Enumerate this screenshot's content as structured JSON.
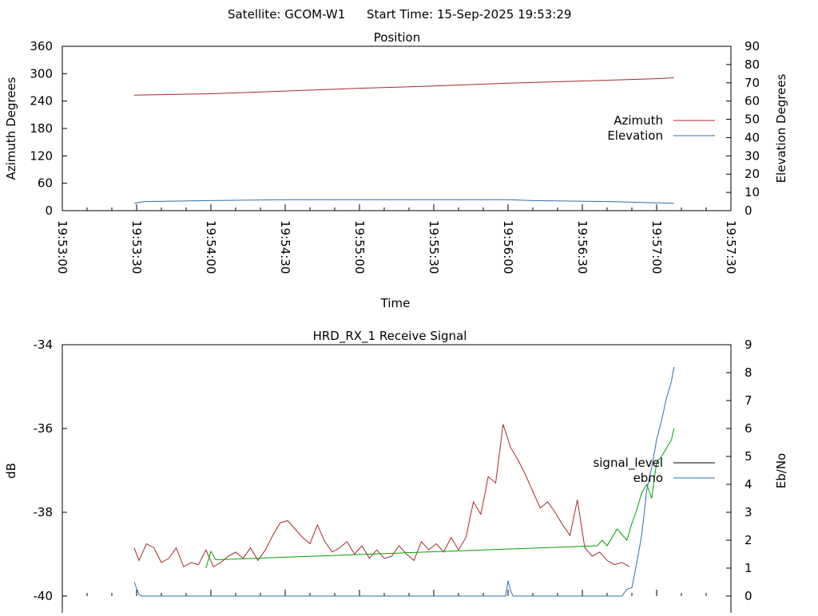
{
  "header": {
    "satellite": "Satellite: GCOM-W1",
    "start_time": "Start Time: 15-Sep-2025 19:53:29"
  },
  "colors": {
    "red": "#a52a2a",
    "blue": "#2f6fa7",
    "green": "#00a000",
    "black": "#000000"
  },
  "chart_data": [
    {
      "type": "line",
      "title": "Position",
      "xlabel": "Time",
      "ylabel": "Azimuth Degrees",
      "y2label": "Elevation Degrees",
      "xlim": [
        "19:53:00",
        "19:57:30"
      ],
      "ylim": [
        0,
        360
      ],
      "y2lim": [
        0,
        90
      ],
      "xticks": [
        "19:53:00",
        "19:53:30",
        "19:54:00",
        "19:54:30",
        "19:55:00",
        "19:55:30",
        "19:56:00",
        "19:56:30",
        "19:57:00",
        "19:57:30"
      ],
      "yticks": [
        0,
        60,
        120,
        180,
        240,
        300,
        360
      ],
      "y2ticks": [
        0,
        10,
        20,
        30,
        40,
        50,
        60,
        70,
        80,
        90
      ],
      "legend_position": "right",
      "series": [
        {
          "name": "Azimuth",
          "axis": "y",
          "color": "#a52a2a",
          "x": [
            "19:53:29",
            "19:54:00",
            "19:54:30",
            "19:55:00",
            "19:55:30",
            "19:56:00",
            "19:56:30",
            "19:57:00",
            "19:57:07"
          ],
          "values": [
            253,
            256,
            262,
            268,
            273,
            279,
            284,
            289,
            291
          ]
        },
        {
          "name": "Elevation",
          "axis": "y2",
          "color": "#2f6fa7",
          "x": [
            "19:53:29",
            "19:53:33",
            "19:54:00",
            "19:54:30",
            "19:55:00",
            "19:55:30",
            "19:56:00",
            "19:56:10",
            "19:56:40",
            "19:57:07"
          ],
          "values": [
            4,
            5,
            5.5,
            6,
            6,
            6,
            6,
            5.5,
            5,
            4
          ]
        }
      ]
    },
    {
      "type": "line",
      "title": "HRD_RX_1 Receive Signal",
      "xlabel": "",
      "ylabel": "dB",
      "y2label": "Eb/No",
      "xlim": [
        "19:53:00",
        "19:57:30"
      ],
      "ylim": [
        -40,
        -34
      ],
      "y2lim": [
        0,
        9
      ],
      "yticks": [
        -40,
        -38,
        -36,
        -34
      ],
      "y2ticks": [
        0,
        1,
        2,
        3,
        4,
        5,
        6,
        7,
        8,
        9
      ],
      "legend_position": "right",
      "series": [
        {
          "name": "signal_level",
          "axis": "y",
          "color": "#a52a2a",
          "x": [
            "19:53:29",
            "19:53:31",
            "19:53:34",
            "19:53:37",
            "19:53:40",
            "19:53:43",
            "19:53:46",
            "19:53:49",
            "19:53:52",
            "19:53:55",
            "19:53:58",
            "19:54:01",
            "19:54:04",
            "19:54:07",
            "19:54:10",
            "19:54:13",
            "19:54:16",
            "19:54:19",
            "19:54:22",
            "19:54:25",
            "19:54:28",
            "19:54:31",
            "19:54:34",
            "19:54:37",
            "19:54:40",
            "19:54:43",
            "19:54:46",
            "19:54:49",
            "19:54:52",
            "19:54:55",
            "19:54:58",
            "19:55:01",
            "19:55:04",
            "19:55:07",
            "19:55:10",
            "19:55:13",
            "19:55:16",
            "19:55:19",
            "19:55:22",
            "19:55:25",
            "19:55:28",
            "19:55:31",
            "19:55:34",
            "19:55:37",
            "19:55:40",
            "19:55:43",
            "19:55:46",
            "19:55:49",
            "19:55:52",
            "19:55:55",
            "19:55:58",
            "19:56:01",
            "19:56:04",
            "19:56:07",
            "19:56:10",
            "19:56:13",
            "19:56:16",
            "19:56:19",
            "19:56:22",
            "19:56:25",
            "19:56:28",
            "19:56:31",
            "19:56:34",
            "19:56:37",
            "19:56:40",
            "19:56:43",
            "19:56:46",
            "19:56:49"
          ],
          "values": [
            -38.85,
            -39.15,
            -38.75,
            -38.85,
            -39.2,
            -39.1,
            -38.85,
            -39.3,
            -39.2,
            -39.25,
            -38.9,
            -39.3,
            -39.2,
            -39.05,
            -38.95,
            -39.1,
            -38.85,
            -39.15,
            -38.9,
            -38.55,
            -38.25,
            -38.2,
            -38.4,
            -38.6,
            -38.75,
            -38.3,
            -38.7,
            -38.95,
            -38.85,
            -38.7,
            -39.0,
            -38.8,
            -39.1,
            -38.9,
            -39.1,
            -39.05,
            -38.8,
            -39.0,
            -39.15,
            -38.7,
            -38.9,
            -38.75,
            -38.95,
            -38.6,
            -38.9,
            -38.6,
            -37.75,
            -38.05,
            -37.15,
            -37.3,
            -35.9,
            -36.45,
            -36.75,
            -37.1,
            -37.5,
            -37.9,
            -37.75,
            -38.0,
            -38.3,
            -38.55,
            -37.7,
            -38.85,
            -39.05,
            -38.95,
            -39.15,
            -39.25,
            -39.2,
            -39.3
          ]
        },
        {
          "name": "ebno",
          "axis": "y2",
          "color": "#2f6fa7",
          "x": [
            "19:53:29",
            "19:53:31",
            "19:53:32",
            "19:53:33",
            "19:55:59",
            "19:56:00",
            "19:56:01",
            "19:56:02",
            "19:56:46",
            "19:56:48",
            "19:56:50",
            "19:56:52",
            "19:56:54",
            "19:56:56",
            "19:56:58",
            "19:57:00",
            "19:57:02",
            "19:57:04",
            "19:57:06",
            "19:57:07"
          ],
          "values": [
            0.5,
            0.05,
            0,
            0,
            0,
            0.55,
            0.2,
            0,
            0,
            0.25,
            0.3,
            1.2,
            2.2,
            3.8,
            4.6,
            5.6,
            6.3,
            7.1,
            7.7,
            8.2
          ]
        },
        {
          "name": "",
          "axis": "y2",
          "color": "#00a000",
          "x": [
            "19:53:58",
            "19:54:00",
            "19:54:02",
            "19:56:36",
            "19:56:38",
            "19:56:40",
            "19:56:42",
            "19:56:44",
            "19:56:46",
            "19:56:48",
            "19:56:50",
            "19:56:52",
            "19:56:54",
            "19:56:56",
            "19:56:58",
            "19:57:00",
            "19:57:02",
            "19:57:04",
            "19:57:06",
            "19:57:07"
          ],
          "values": [
            1.0,
            1.6,
            1.3,
            1.8,
            2.0,
            1.8,
            2.1,
            2.4,
            2.2,
            2.0,
            2.6,
            3.1,
            3.7,
            4.0,
            3.5,
            4.8,
            5.0,
            5.3,
            5.6,
            6.0
          ]
        }
      ]
    }
  ]
}
